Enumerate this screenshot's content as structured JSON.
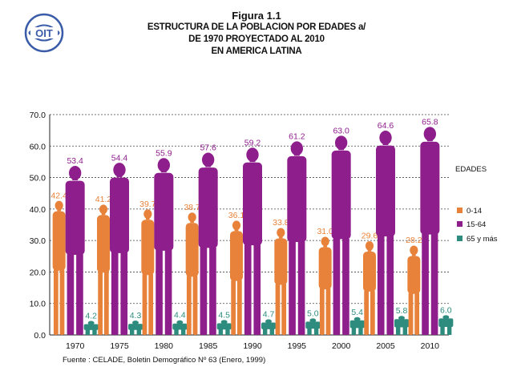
{
  "header": {
    "logo_alt": "OIT",
    "figure_label": "Figura 1.1",
    "title_lines": [
      "ESTRUCTURA DE LA POBLACION POR EDADES a/",
      "DE 1970 PROYECTADO AL 2010",
      "EN AMERICA LATINA"
    ]
  },
  "chart_data": {
    "type": "bar",
    "title": "ESTRUCTURA DE LA POBLACION POR EDADES a/ DE 1970 PROYECTADO AL 2010 EN AMERICA LATINA",
    "categories": [
      "1970",
      "1975",
      "1980",
      "1985",
      "1990",
      "1995",
      "2000",
      "2005",
      "2010"
    ],
    "series": [
      {
        "name": "0-14",
        "color": "#E8823A",
        "values": [
          42.4,
          41.2,
          39.7,
          38.7,
          36.1,
          33.8,
          31.0,
          29.6,
          28.2
        ],
        "labels": [
          "42.4",
          "41.2",
          "39.7",
          "38.7",
          "36.1",
          "33.8",
          "31.0",
          "29.6",
          "28.2"
        ]
      },
      {
        "name": "15-64",
        "color": "#8E1E8C",
        "values": [
          53.4,
          54.4,
          55.9,
          57.6,
          59.2,
          61.2,
          63.0,
          64.6,
          65.8
        ],
        "labels": [
          "53.4",
          "54.4",
          "55.9",
          "57.6",
          "59.2",
          "61.2",
          "63.0",
          "64.6",
          "65.8"
        ]
      },
      {
        "name": "65 y más",
        "color": "#2E8C7E",
        "values": [
          4.2,
          4.3,
          4.4,
          4.5,
          4.7,
          5.0,
          5.4,
          5.8,
          6.0
        ],
        "labels": [
          "4.2",
          "4.3",
          "4.4",
          "4.5",
          "4.7",
          "5.0",
          "5.4",
          "5.8",
          "6.0"
        ]
      }
    ],
    "ylim": [
      0,
      70
    ],
    "yticks": [
      "0.0",
      "10.0",
      "20.0",
      "30.0",
      "40.0",
      "50.0",
      "60.0",
      "70.0"
    ],
    "legend_title": "EDADES",
    "legend_position": "right",
    "grid": true,
    "xlabel": "",
    "ylabel": ""
  },
  "footer": {
    "source": "Fuente : CELADE, Boletin Demográfico Nº 63 (Enero, 1999)"
  }
}
